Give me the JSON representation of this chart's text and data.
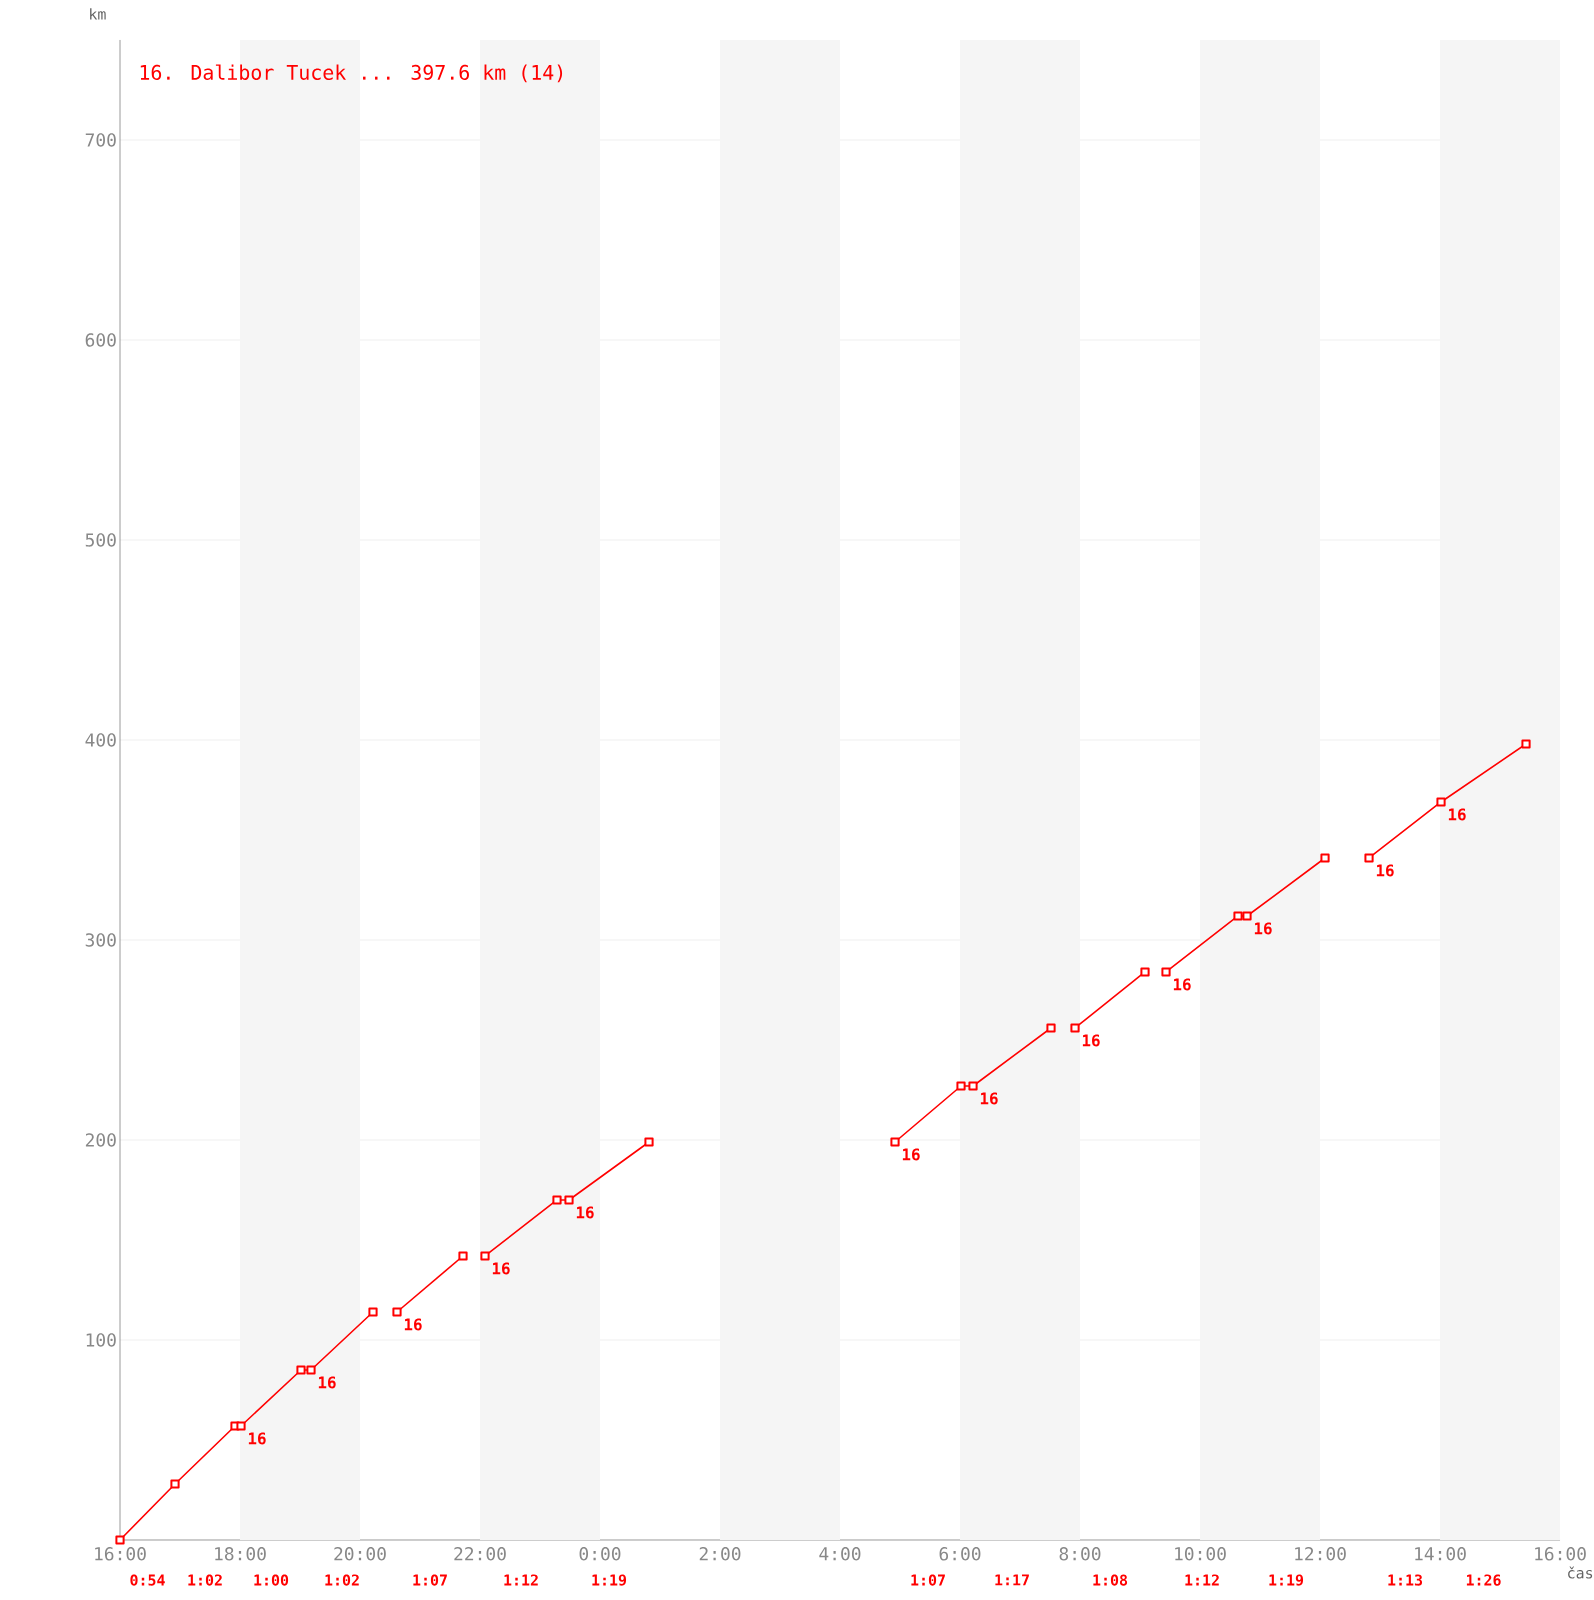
{
  "chart_data": {
    "type": "line",
    "title": "16. Dalibor Tucek ... 397.6 km (14)",
    "xlabel": "čas",
    "ylabel": "km",
    "xlim": [
      "2000-01-01T16:00",
      "2000-01-02T16:00"
    ],
    "ylim": [
      0,
      750
    ],
    "xticks": [
      {
        "value": "2000-01-01T16:00",
        "label": "16:00"
      },
      {
        "value": "2000-01-01T18:00",
        "label": "18:00"
      },
      {
        "value": "2000-01-01T20:00",
        "label": "20:00"
      },
      {
        "value": "2000-01-01T22:00",
        "label": "22:00"
      },
      {
        "value": "2000-01-02T00:00",
        "label": "0:00"
      },
      {
        "value": "2000-01-02T02:00",
        "label": "2:00"
      },
      {
        "value": "2000-01-02T04:00",
        "label": "4:00"
      },
      {
        "value": "2000-01-02T06:00",
        "label": "6:00"
      },
      {
        "value": "2000-01-02T08:00",
        "label": "8:00"
      },
      {
        "value": "2000-01-02T10:00",
        "label": "10:00"
      },
      {
        "value": "2000-01-02T12:00",
        "label": "12:00"
      },
      {
        "value": "2000-01-02T14:00",
        "label": "14:00"
      },
      {
        "value": "2000-01-02T16:00",
        "label": "16:00"
      }
    ],
    "yticks": [
      100,
      200,
      300,
      400,
      500,
      600,
      700
    ],
    "grid": "y",
    "marker": "square",
    "line_style": "solid",
    "bands": [
      {
        "axis": "x",
        "from": "2000-01-01T18:00",
        "to": "2000-01-01T20:00",
        "color": "#f5f5f5"
      },
      {
        "axis": "x",
        "from": "2000-01-01T22:00",
        "to": "2000-01-02T00:00",
        "color": "#f5f5f5"
      },
      {
        "axis": "x",
        "from": "2000-01-02T02:00",
        "to": "2000-01-02T04:00",
        "color": "#f5f5f5"
      },
      {
        "axis": "x",
        "from": "2000-01-02T06:00",
        "to": "2000-01-02T08:00",
        "color": "#f5f5f5"
      },
      {
        "axis": "x",
        "from": "2000-01-02T10:00",
        "to": "2000-01-02T12:00",
        "color": "#f5f5f5"
      },
      {
        "axis": "x",
        "from": "2000-01-02T14:00",
        "to": "2000-01-02T16:00",
        "color": "#f5f5f5"
      }
    ],
    "series": [
      {
        "color": "#ff0000",
        "x": [
          "2000-01-01T16:00",
          "2000-01-01T16:55",
          "2000-01-01T17:55",
          "2000-01-01T18:01",
          "2000-01-01T19:01",
          "2000-01-01T19:11",
          "2000-01-01T20:13"
        ],
        "values": [
          0,
          28,
          57,
          57,
          85,
          85,
          114
        ]
      },
      {
        "color": "#ff0000",
        "x": [
          "2000-01-01T20:37",
          "2000-01-01T21:43"
        ],
        "values": [
          114,
          142
        ]
      },
      {
        "color": "#ff0000",
        "x": [
          "2000-01-01T22:05",
          "2000-01-01T23:17",
          "2000-01-01T23:29",
          "2000-01-02T00:49"
        ],
        "values": [
          142,
          170,
          170,
          199
        ]
      },
      {
        "color": "#ff0000",
        "x": [
          "2000-01-02T04:55",
          "2000-01-02T06:01",
          "2000-01-02T06:13",
          "2000-01-02T07:31"
        ],
        "values": [
          199,
          227,
          227,
          256
        ]
      },
      {
        "color": "#ff0000",
        "x": [
          "2000-01-02T07:55",
          "2000-01-02T09:05"
        ],
        "values": [
          256,
          284
        ]
      },
      {
        "color": "#ff0000",
        "x": [
          "2000-01-02T09:26",
          "2000-01-02T10:38",
          "2000-01-02T10:47",
          "2000-01-02T12:05"
        ],
        "values": [
          284,
          312,
          312,
          341
        ]
      },
      {
        "color": "#ff0000",
        "x": [
          "2000-01-02T12:49",
          "2000-01-02T14:01",
          "2000-01-02T15:26"
        ],
        "values": [
          341,
          369,
          398
        ]
      }
    ],
    "annotations": [
      "0:54",
      "1:02",
      "1:00",
      "1:02",
      "1:07",
      "1:12",
      "1:19",
      "1:07",
      "1:17",
      "1:08",
      "1:12",
      "1:19",
      "1:13",
      "1:26",
      {
        "text": "16",
        "x": "2000-01-01T18:01",
        "y": 57
      },
      {
        "text": "16",
        "x": "2000-01-01T19:11",
        "y": 85
      },
      {
        "text": "16",
        "x": "2000-01-01T20:37",
        "y": 114
      },
      {
        "text": "16",
        "x": "2000-01-01T22:05",
        "y": 142
      },
      {
        "text": "16",
        "x": "2000-01-01T23:29",
        "y": 170
      },
      {
        "text": "16",
        "x": "2000-01-02T04:55",
        "y": 199
      },
      {
        "text": "16",
        "x": "2000-01-02T06:13",
        "y": 227
      },
      {
        "text": "16",
        "x": "2000-01-02T07:55",
        "y": 256
      },
      {
        "text": "16",
        "x": "2000-01-02T09:26",
        "y": 284
      },
      {
        "text": "16",
        "x": "2000-01-02T10:47",
        "y": 312
      },
      {
        "text": "16",
        "x": "2000-01-02T12:49",
        "y": 341
      },
      {
        "text": "16",
        "x": "2000-01-02T14:01",
        "y": 369
      }
    ]
  }
}
